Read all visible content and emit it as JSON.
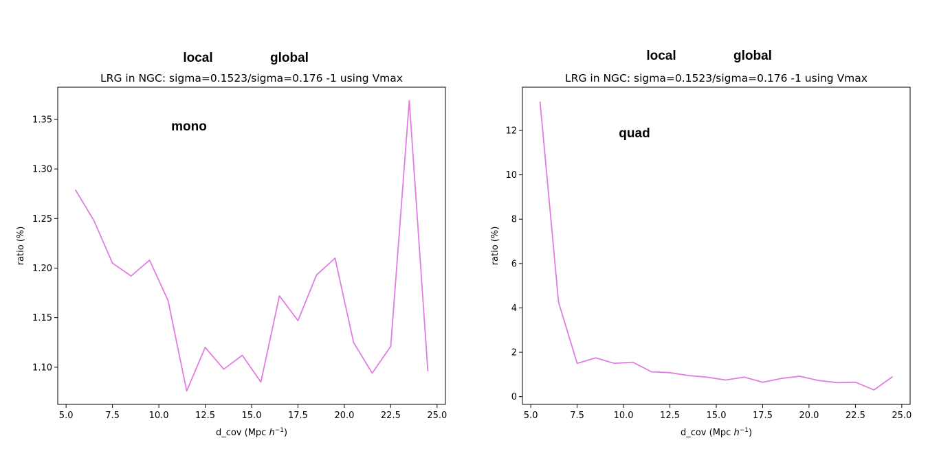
{
  "chart_data": [
    {
      "type": "line",
      "title": "LRG in NGC: sigma=0.1523/sigma=0.176 -1 using Vmax",
      "xlabel": "d_cov (Mpc ",
      "xlabel_h": "h",
      "xlabel_exp": "−1",
      "xlabel_close": ")",
      "ylabel": "ratio (%)",
      "xlim": [
        4.55,
        25.45
      ],
      "ylim": [
        1.0625,
        1.3825
      ],
      "xticks": [
        5.0,
        7.5,
        10.0,
        12.5,
        15.0,
        17.5,
        20.0,
        22.5,
        25.0
      ],
      "xtick_labels": [
        "5.0",
        "7.5",
        "10.0",
        "12.5",
        "15.0",
        "17.5",
        "20.0",
        "22.5",
        "25.0"
      ],
      "yticks": [
        1.1,
        1.15,
        1.2,
        1.25,
        1.3,
        1.35
      ],
      "ytick_labels": [
        "1.10",
        "1.15",
        "1.20",
        "1.25",
        "1.30",
        "1.35"
      ],
      "grid": false,
      "color": "#e07ee0",
      "series": [
        {
          "x": [
            5.5,
            6.5,
            7.5,
            8.5,
            9.5,
            10.5,
            11.5,
            12.5,
            13.5,
            14.5,
            15.5,
            16.5,
            17.5,
            18.5,
            19.5,
            20.5,
            21.5,
            22.5,
            23.5,
            24.5
          ],
          "y": [
            1.279,
            1.248,
            1.205,
            1.192,
            1.208,
            1.167,
            1.076,
            1.12,
            1.098,
            1.112,
            1.085,
            1.172,
            1.147,
            1.193,
            1.21,
            1.125,
            1.094,
            1.121,
            1.369,
            1.096
          ]
        }
      ],
      "annotations": {
        "top_left": "local",
        "top_right": "global",
        "inner": "mono"
      }
    },
    {
      "type": "line",
      "title": "LRG in NGC: sigma=0.1523/sigma=0.176 -1 using Vmax",
      "xlabel": "d_cov (Mpc ",
      "xlabel_h": "h",
      "xlabel_exp": "−1",
      "xlabel_close": ")",
      "ylabel": "ratio (%)",
      "xlim": [
        4.55,
        25.45
      ],
      "ylim": [
        -0.35,
        13.95
      ],
      "xticks": [
        5.0,
        7.5,
        10.0,
        12.5,
        15.0,
        17.5,
        20.0,
        22.5,
        25.0
      ],
      "xtick_labels": [
        "5.0",
        "7.5",
        "10.0",
        "12.5",
        "15.0",
        "17.5",
        "20.0",
        "22.5",
        "25.0"
      ],
      "yticks": [
        0,
        2,
        4,
        6,
        8,
        10,
        12
      ],
      "ytick_labels": [
        "0",
        "2",
        "4",
        "6",
        "8",
        "10",
        "12"
      ],
      "grid": false,
      "color": "#e07ee0",
      "series": [
        {
          "x": [
            5.5,
            6.5,
            7.5,
            8.5,
            9.5,
            10.5,
            11.5,
            12.5,
            13.5,
            14.5,
            15.5,
            16.5,
            17.5,
            18.5,
            19.5,
            20.5,
            21.5,
            22.5,
            23.5,
            24.5
          ],
          "y": [
            13.3,
            4.25,
            1.5,
            1.75,
            1.5,
            1.55,
            1.12,
            1.08,
            0.95,
            0.88,
            0.75,
            0.88,
            0.65,
            0.82,
            0.92,
            0.73,
            0.63,
            0.65,
            0.3,
            0.9
          ]
        }
      ],
      "annotations": {
        "top_left": "local",
        "top_right": "global",
        "inner": "quad"
      }
    }
  ]
}
